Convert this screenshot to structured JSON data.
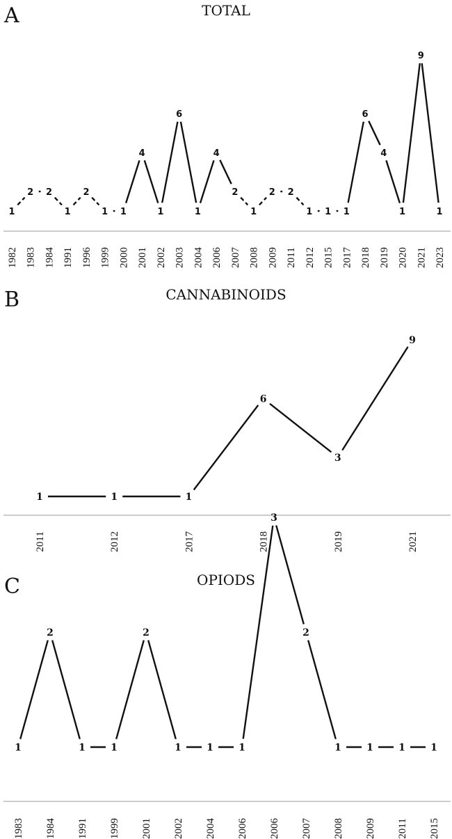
{
  "chart_data": [
    {
      "type": "line",
      "panel_label": "A",
      "title": "TOTAL",
      "categories": [
        "1982",
        "1983",
        "1984",
        "1991",
        "1996",
        "1999",
        "2000",
        "2001",
        "2002",
        "2003",
        "2004",
        "2006",
        "2007",
        "2008",
        "2009",
        "2011",
        "2012",
        "2015",
        "2017",
        "2018",
        "2019",
        "2020",
        "2021",
        "2023"
      ],
      "values": [
        1,
        2,
        2,
        1,
        2,
        1,
        1,
        4,
        1,
        6,
        1,
        4,
        2,
        1,
        2,
        2,
        1,
        1,
        1,
        6,
        4,
        1,
        9,
        1
      ],
      "data_labels": true,
      "grid": false,
      "legend": "none"
    },
    {
      "type": "line",
      "panel_label": "B",
      "title": "CANNABINOIDS",
      "categories": [
        "2011",
        "2012",
        "2017",
        "2018",
        "2019",
        "2021"
      ],
      "values": [
        1,
        1,
        1,
        6,
        3,
        9
      ],
      "data_labels": true,
      "grid": false,
      "legend": "none"
    },
    {
      "type": "line",
      "panel_label": "C",
      "title": "OPIODS",
      "categories": [
        "1983",
        "1984",
        "1991",
        "1999",
        "2001",
        "2002",
        "2004",
        "2006",
        "2006",
        "2007",
        "2008",
        "2009",
        "2011",
        "2015"
      ],
      "values": [
        1,
        2,
        1,
        1,
        2,
        1,
        1,
        1,
        3,
        2,
        1,
        1,
        1,
        1
      ],
      "data_labels": true,
      "grid": false,
      "legend": "none"
    }
  ]
}
